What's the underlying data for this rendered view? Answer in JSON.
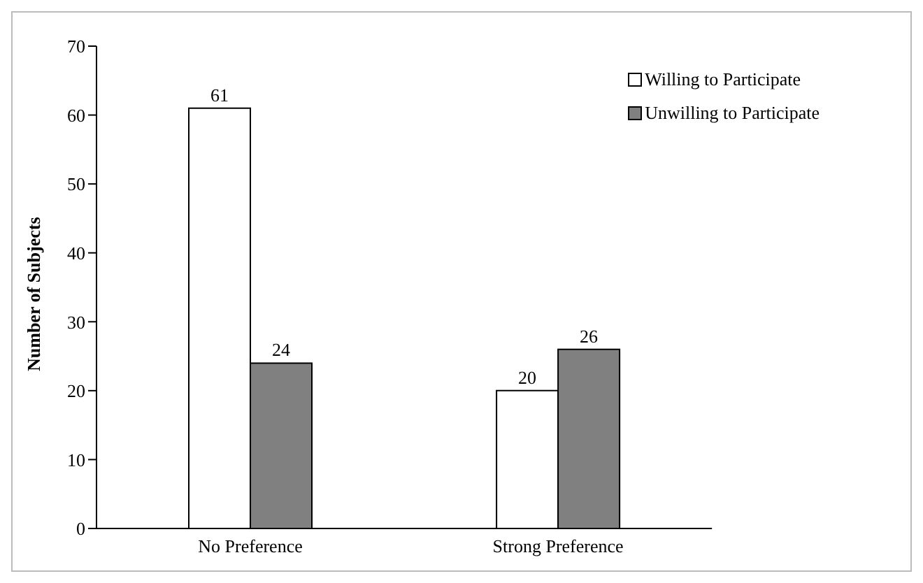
{
  "chart_data": {
    "type": "bar",
    "ylabel": "Number of Subjects",
    "categories": [
      "No Preference",
      "Strong Preference"
    ],
    "series": [
      {
        "name": "Willing to Participate",
        "color": "#ffffff",
        "values": [
          61,
          20
        ]
      },
      {
        "name": "Unwilling to Participate",
        "color": "#808080",
        "values": [
          24,
          26
        ]
      }
    ],
    "ylim": [
      0,
      70
    ],
    "yticks": [
      0,
      10,
      20,
      30,
      40,
      50,
      60,
      70
    ],
    "data_labels": true,
    "grid": false,
    "legend": "top right"
  }
}
